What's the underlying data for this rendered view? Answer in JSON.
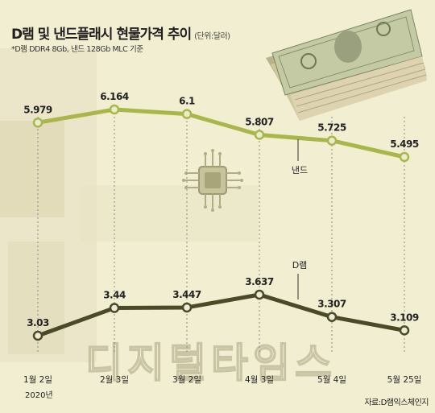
{
  "header": {
    "title": "D램 및 낸드플래시 현물가격 추이",
    "unit": "(단위:달러)",
    "note": "*D램 DDR4 8Gb, 낸드 128Gb MLC 기준"
  },
  "footer": {
    "source": "자료:D램익스체인지",
    "watermark": "디지털타임스"
  },
  "colors": {
    "background": "#f2eed2",
    "nand_line": "#a9b64a",
    "dram_line": "#4a4a28",
    "gridline": "#8a8a84"
  },
  "chart_data": {
    "type": "line",
    "title": "D램 및 낸드플래시 현물가격 추이",
    "categories": [
      "1월 2일",
      "2월 3일",
      "3월 2일",
      "4월 3일",
      "5월 4일",
      "5월 25일"
    ],
    "x_sublabel": "2020년",
    "unit": "달러",
    "series": [
      {
        "name": "낸드",
        "values": [
          5.979,
          6.164,
          6.1,
          5.807,
          5.725,
          5.495
        ],
        "labels": [
          "5.979",
          "6.164",
          "6.1",
          "5.807",
          "5.725",
          "5.495"
        ]
      },
      {
        "name": "D램",
        "values": [
          3.03,
          3.44,
          3.447,
          3.637,
          3.307,
          3.109
        ],
        "labels": [
          "3.03",
          "3.44",
          "3.447",
          "3.637",
          "3.307",
          "3.109"
        ]
      }
    ],
    "grid": "vertical-dashed",
    "legend": "inline-labels"
  }
}
